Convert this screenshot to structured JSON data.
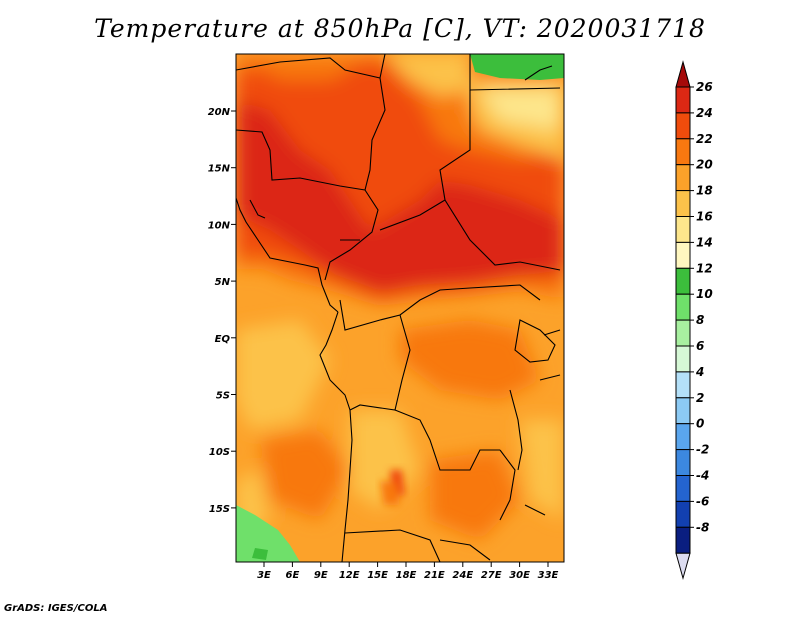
{
  "title": "Temperature at 850hPa [C], VT: 2020031718",
  "credit": "GrADS: IGES/COLA",
  "map": {
    "lat_ticks": [
      "20N",
      "15N",
      "10N",
      "5N",
      "EQ",
      "5S",
      "10S",
      "15S"
    ],
    "lon_ticks": [
      "3E",
      "6E",
      "9E",
      "12E",
      "15E",
      "18E",
      "21E",
      "24E",
      "27E",
      "30E",
      "33E"
    ]
  },
  "colorbar": {
    "labels": [
      "26",
      "24",
      "22",
      "20",
      "18",
      "16",
      "14",
      "12",
      "10",
      "8",
      "6",
      "4",
      "2",
      "0",
      "-2",
      "-4",
      "-6",
      "-8"
    ],
    "colors": [
      "#a50a0a",
      "#dc2814",
      "#f04c0c",
      "#f87810",
      "#fca22a",
      "#fcc24a",
      "#fde68c",
      "#fff7c0",
      "#3cbe3c",
      "#6fe06a",
      "#a8f0a0",
      "#d6f8d6",
      "#b4e0f8",
      "#8ccaf4",
      "#5aa6ee",
      "#3c88e0",
      "#2464d0",
      "#1240b0",
      "#0a1e80",
      "#dcdcf0"
    ]
  }
}
